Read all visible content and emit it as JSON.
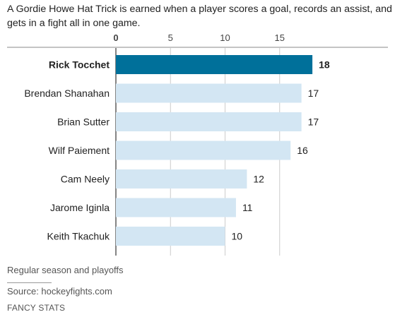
{
  "subtitle": "A Gordie Howe Hat Trick is earned when a player scores a goal, records an assist, and gets in a fight all in one game.",
  "note": "Regular season and playoffs",
  "source": "Source: hockeyfights.com",
  "credit": "FANCY STATS",
  "colors": {
    "highlight": "#00709a",
    "bar": "#d3e6f3",
    "axis": "#999999",
    "grid": "#cccccc"
  },
  "chart_data": {
    "type": "bar",
    "orientation": "horizontal",
    "categories": [
      "Rick Tocchet",
      "Brendan Shanahan",
      "Brian Sutter",
      "Wilf Paiement",
      "Cam Neely",
      "Jarome Iginla",
      "Keith Tkachuk"
    ],
    "values": [
      18,
      17,
      17,
      16,
      12,
      11,
      10
    ],
    "highlight_index": 0,
    "xticks": [
      0,
      5,
      10,
      15
    ],
    "xlim": [
      0,
      20
    ],
    "axis_position": "top",
    "grid": true
  }
}
